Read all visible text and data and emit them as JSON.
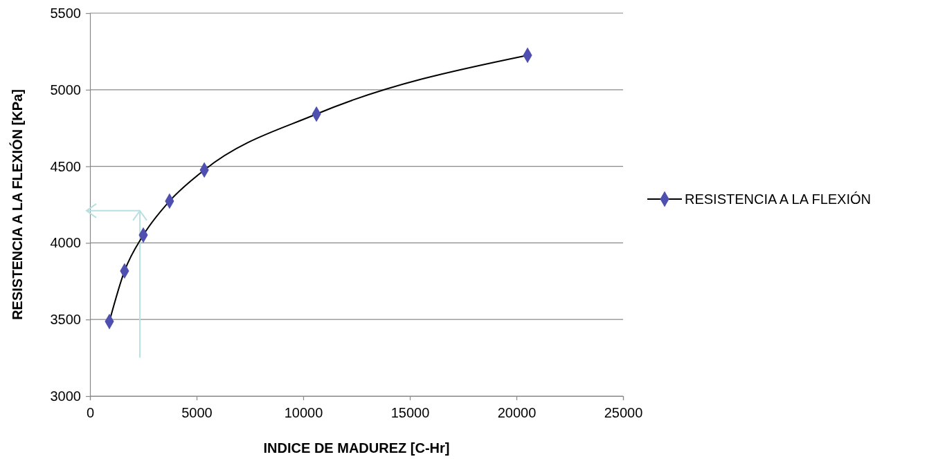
{
  "chart_data": {
    "type": "line",
    "xlabel": "INDICE DE MADUREZ [C-Hr]",
    "ylabel": "RESISTENCIA A LA FLEXIÓN [KPa]",
    "x": [
      909,
      1620,
      2500,
      3730,
      5360,
      10620,
      20520
    ],
    "series": [
      {
        "name": "RESISTENCIA A LA FLEXIÓN",
        "color": "#000000",
        "colors": [
          "#4f4fb0",
          "#4f4fb0",
          "#4f4fb0",
          "#4f4fb0",
          "#4f4fb0",
          "#4f4fb0",
          "#4f4fb0"
        ],
        "values": [
          3487,
          3817,
          4051,
          4273,
          4476,
          4841,
          5225
        ]
      }
    ],
    "xlim": [
      0,
      25000
    ],
    "xticks": [
      0,
      5000,
      10000,
      15000,
      20000,
      25000
    ],
    "ylim": [
      3000,
      5500
    ],
    "yticks": [
      3000,
      3500,
      4000,
      4500,
      5000,
      5500
    ],
    "grid": "y",
    "legend": "right",
    "marker": "diamond",
    "line_style": "solid"
  }
}
